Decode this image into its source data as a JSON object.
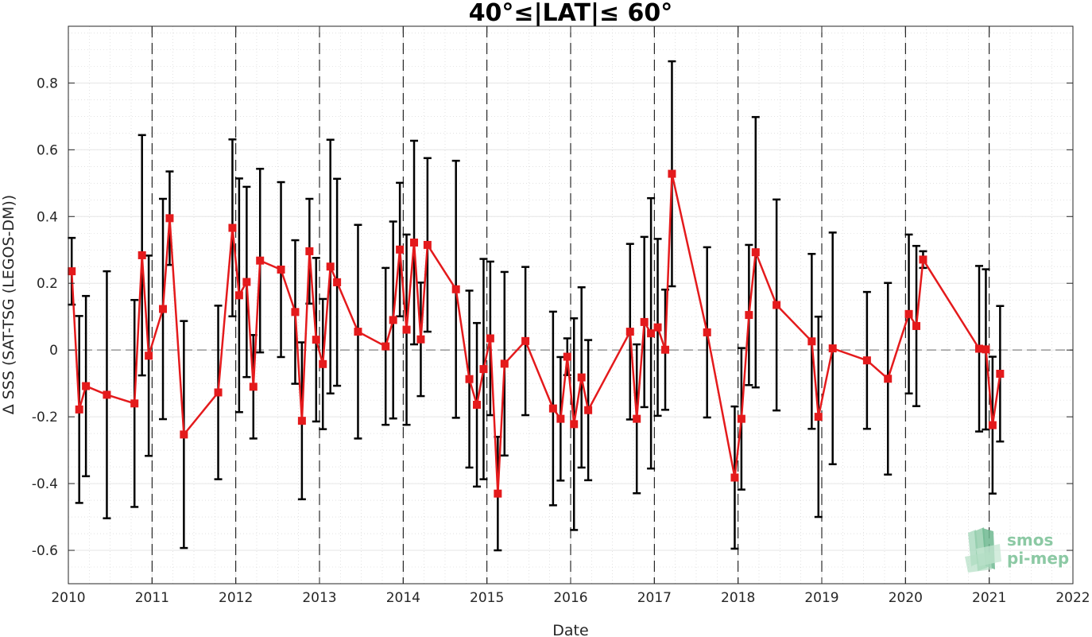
{
  "chart_data": {
    "type": "line",
    "title": "40°≤|LAT|≤ 60°",
    "xlabel": "Date",
    "ylabel": "Δ SSS (SAT-TSG (LEGOS-DM))",
    "xlim": [
      2010,
      2022
    ],
    "ylim": [
      -0.7,
      0.97
    ],
    "xticks": [
      "2010",
      "2011",
      "2012",
      "2013",
      "2014",
      "2015",
      "2016",
      "2017",
      "2018",
      "2019",
      "2020",
      "2021",
      "2022"
    ],
    "yticks": [
      "-0.6",
      "-0.4",
      "-0.2",
      "0",
      "0.2",
      "0.4",
      "0.6",
      "0.8"
    ],
    "grid": true,
    "year_dividers": [
      2011,
      2012,
      2013,
      2014,
      2015,
      2016,
      2017,
      2018,
      2019,
      2020,
      2021
    ],
    "colors": {
      "series": "#e41a1c",
      "errorbar": "#000000",
      "zero_line": "#999999",
      "logo": "#8cc9a4"
    },
    "series": [
      {
        "x": [
          2010.04,
          2010.13,
          2010.21,
          2010.46,
          2010.79,
          2010.88,
          2010.96,
          2011.13,
          2011.21,
          2011.38,
          2011.79,
          2011.96,
          2012.04,
          2012.13,
          2012.21,
          2012.29,
          2012.54,
          2012.71,
          2012.79,
          2012.88,
          2012.96,
          2013.04,
          2013.13,
          2013.21,
          2013.46,
          2013.79,
          2013.88,
          2013.96,
          2014.04,
          2014.13,
          2014.21,
          2014.29,
          2014.63,
          2014.79,
          2014.88,
          2014.96,
          2015.04,
          2015.13,
          2015.21,
          2015.46,
          2015.79,
          2015.88,
          2015.96,
          2016.04,
          2016.13,
          2016.21,
          2016.71,
          2016.79,
          2016.88,
          2016.96,
          2017.04,
          2017.13,
          2017.21,
          2017.63,
          2017.96,
          2018.04,
          2018.13,
          2018.21,
          2018.46,
          2018.88,
          2018.96,
          2019.13,
          2019.54,
          2019.79,
          2020.04,
          2020.13,
          2020.21,
          2020.88,
          2020.96,
          2021.04,
          2021.13
        ],
        "y": [
          0.236,
          -0.178,
          -0.108,
          -0.134,
          -0.16,
          0.284,
          -0.017,
          0.123,
          0.395,
          -0.253,
          -0.127,
          0.366,
          0.164,
          0.204,
          -0.11,
          0.268,
          0.241,
          0.114,
          -0.212,
          0.296,
          0.031,
          -0.042,
          0.25,
          0.203,
          0.055,
          0.011,
          0.09,
          0.301,
          0.061,
          0.322,
          0.032,
          0.315,
          0.182,
          -0.087,
          -0.164,
          -0.057,
          0.035,
          -0.43,
          -0.041,
          0.027,
          -0.175,
          -0.206,
          -0.02,
          -0.222,
          -0.082,
          -0.18,
          0.055,
          -0.206,
          0.084,
          0.05,
          0.068,
          0.001,
          0.528,
          0.053,
          -0.382,
          -0.206,
          0.105,
          0.293,
          0.135,
          0.026,
          -0.2,
          0.005,
          -0.031,
          -0.086,
          0.108,
          0.072,
          0.271,
          0.004,
          0.002,
          -0.225,
          -0.071
        ],
        "err": [
          0.1,
          0.28,
          0.27,
          0.37,
          0.31,
          0.36,
          0.3,
          0.33,
          0.14,
          0.34,
          0.26,
          0.265,
          0.35,
          0.285,
          0.155,
          0.275,
          0.262,
          0.215,
          0.235,
          0.157,
          0.245,
          0.195,
          0.38,
          0.31,
          0.32,
          0.235,
          0.295,
          0.2,
          0.285,
          0.305,
          0.17,
          0.26,
          0.385,
          0.265,
          0.245,
          0.33,
          0.23,
          0.17,
          0.275,
          0.222,
          0.29,
          0.185,
          0.055,
          0.317,
          0.27,
          0.21,
          0.263,
          0.223,
          0.255,
          0.405,
          0.265,
          0.18,
          0.337,
          0.255,
          0.213,
          0.212,
          0.21,
          0.405,
          0.316,
          0.262,
          0.3,
          0.347,
          0.205,
          0.287,
          0.238,
          0.24,
          0.025,
          0.248,
          0.24,
          0.205,
          0.203
        ]
      }
    ]
  },
  "logo": {
    "line1": "smos",
    "line2": "pi-mep"
  }
}
